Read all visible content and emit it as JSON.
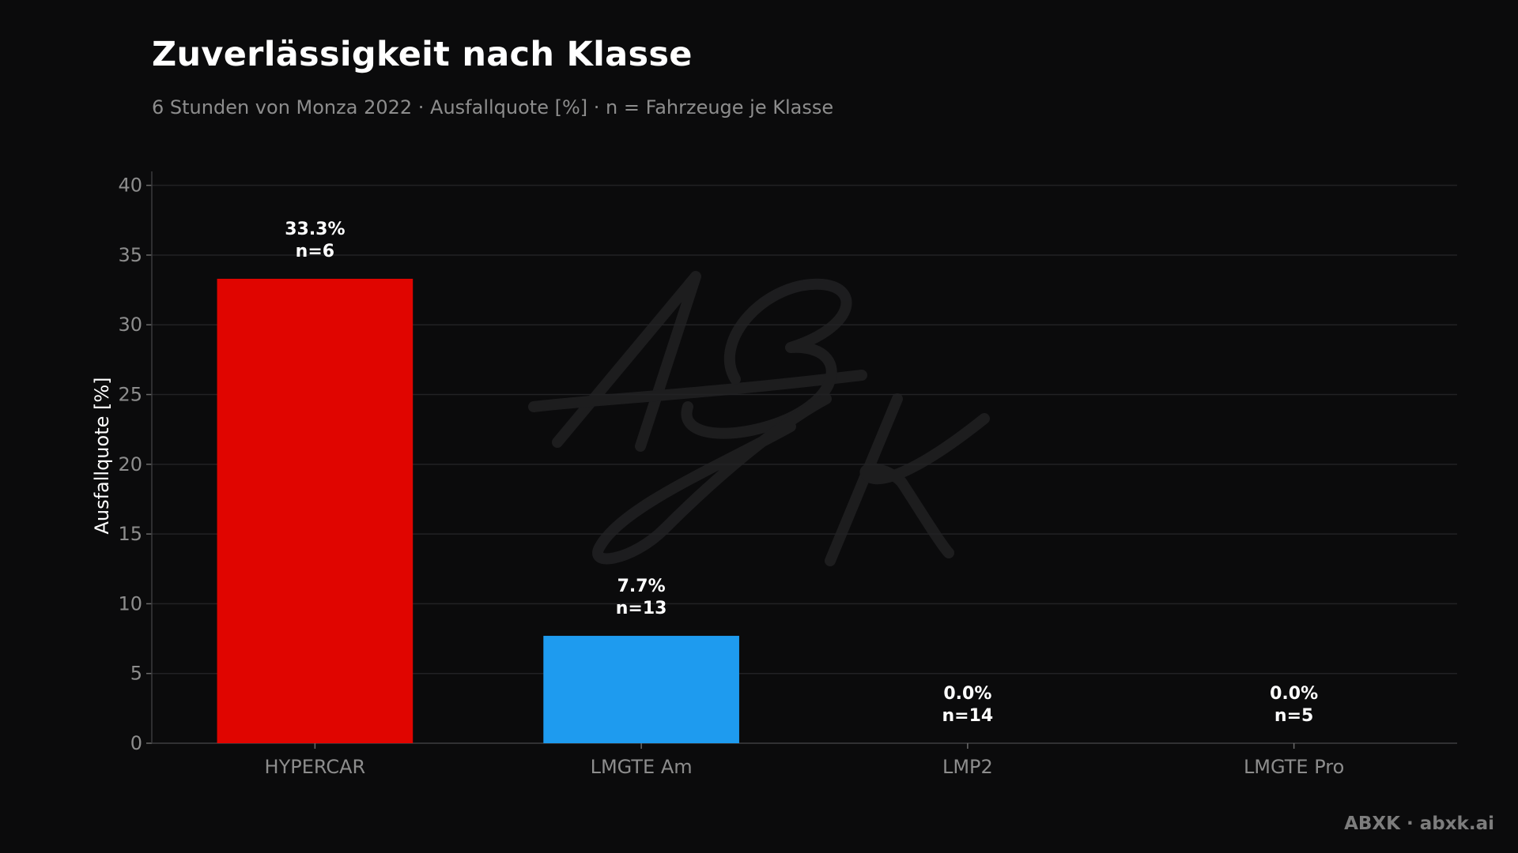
{
  "header": {
    "title": "Zuverlässigkeit nach Klasse",
    "subtitle": "6 Stunden von Monza 2022 · Ausfallquote [%] · n = Fahrzeuge je Klasse"
  },
  "footer": {
    "credit": "ABXK · abxk.ai"
  },
  "watermark": {
    "text": "ABXK"
  },
  "chart_data": {
    "type": "bar",
    "title": "Zuverlässigkeit nach Klasse",
    "subtitle": "6 Stunden von Monza 2022 · Ausfallquote [%] · n = Fahrzeuge je Klasse",
    "xlabel": "",
    "ylabel": "Ausfallquote [%]",
    "ylim": [
      0,
      41
    ],
    "yticks": [
      0,
      5,
      10,
      15,
      20,
      25,
      30,
      35,
      40
    ],
    "grid": true,
    "categories": [
      "HYPERCAR",
      "LMGTE Am",
      "LMP2",
      "LMGTE Pro"
    ],
    "values": [
      33.3,
      7.7,
      0.0,
      0.0
    ],
    "counts": [
      6,
      13,
      14,
      5
    ],
    "value_labels": [
      "33.3%",
      "7.7%",
      "0.0%",
      "0.0%"
    ],
    "count_labels": [
      "n=6",
      "n=13",
      "n=14",
      "n=5"
    ],
    "colors": [
      "#e00500",
      "#1e9bef",
      "#1e9bef",
      "#1e9bef"
    ],
    "background": "#0b0b0c",
    "grid_color": "#222224"
  }
}
